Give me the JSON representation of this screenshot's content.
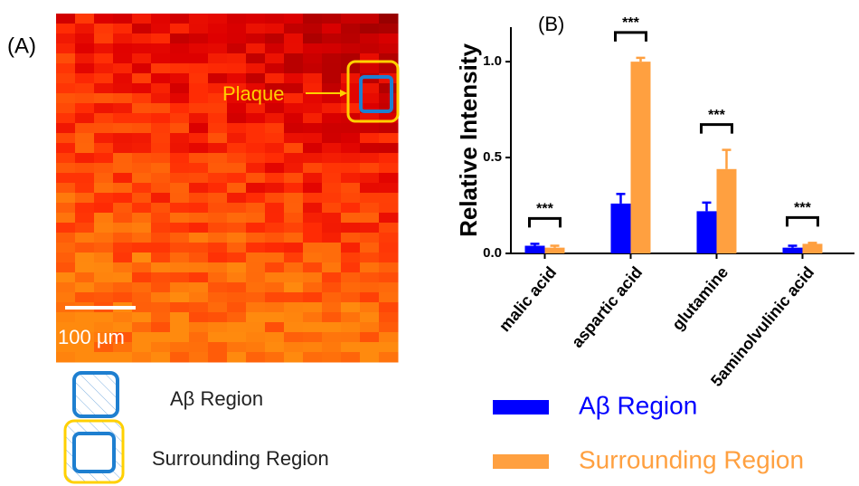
{
  "panel_a": {
    "label": "(A)",
    "plaque": "Plaque",
    "scale": "100 µm",
    "legend": [
      "Aβ Region",
      "Surrounding Region"
    ]
  },
  "chart_data": {
    "type": "bar",
    "panel_label": "(B)",
    "y_label": "Relative Intensity",
    "categories": [
      "malic acid",
      "aspartic acid",
      "glutamine",
      "5aminolvulinic acid"
    ],
    "series": [
      {
        "name": "Aβ Region",
        "color": "#0000ff",
        "values": [
          0.04,
          0.26,
          0.22,
          0.03
        ],
        "errors": [
          0.01,
          0.05,
          0.045,
          0.01
        ]
      },
      {
        "name": "Surrounding Region",
        "color": "#ffa040",
        "values": [
          0.03,
          1.0,
          0.44,
          0.05
        ],
        "errors": [
          0.01,
          0.02,
          0.1,
          0.005
        ]
      }
    ],
    "annotations": [
      "***",
      "***",
      "***",
      "***"
    ],
    "ylim": [
      0,
      1.18
    ],
    "yticks": [
      {
        "value": 0,
        "label": "0.0"
      },
      {
        "value": 0.5,
        "label": "0.5"
      },
      {
        "value": 1,
        "label": "1.0"
      }
    ]
  }
}
